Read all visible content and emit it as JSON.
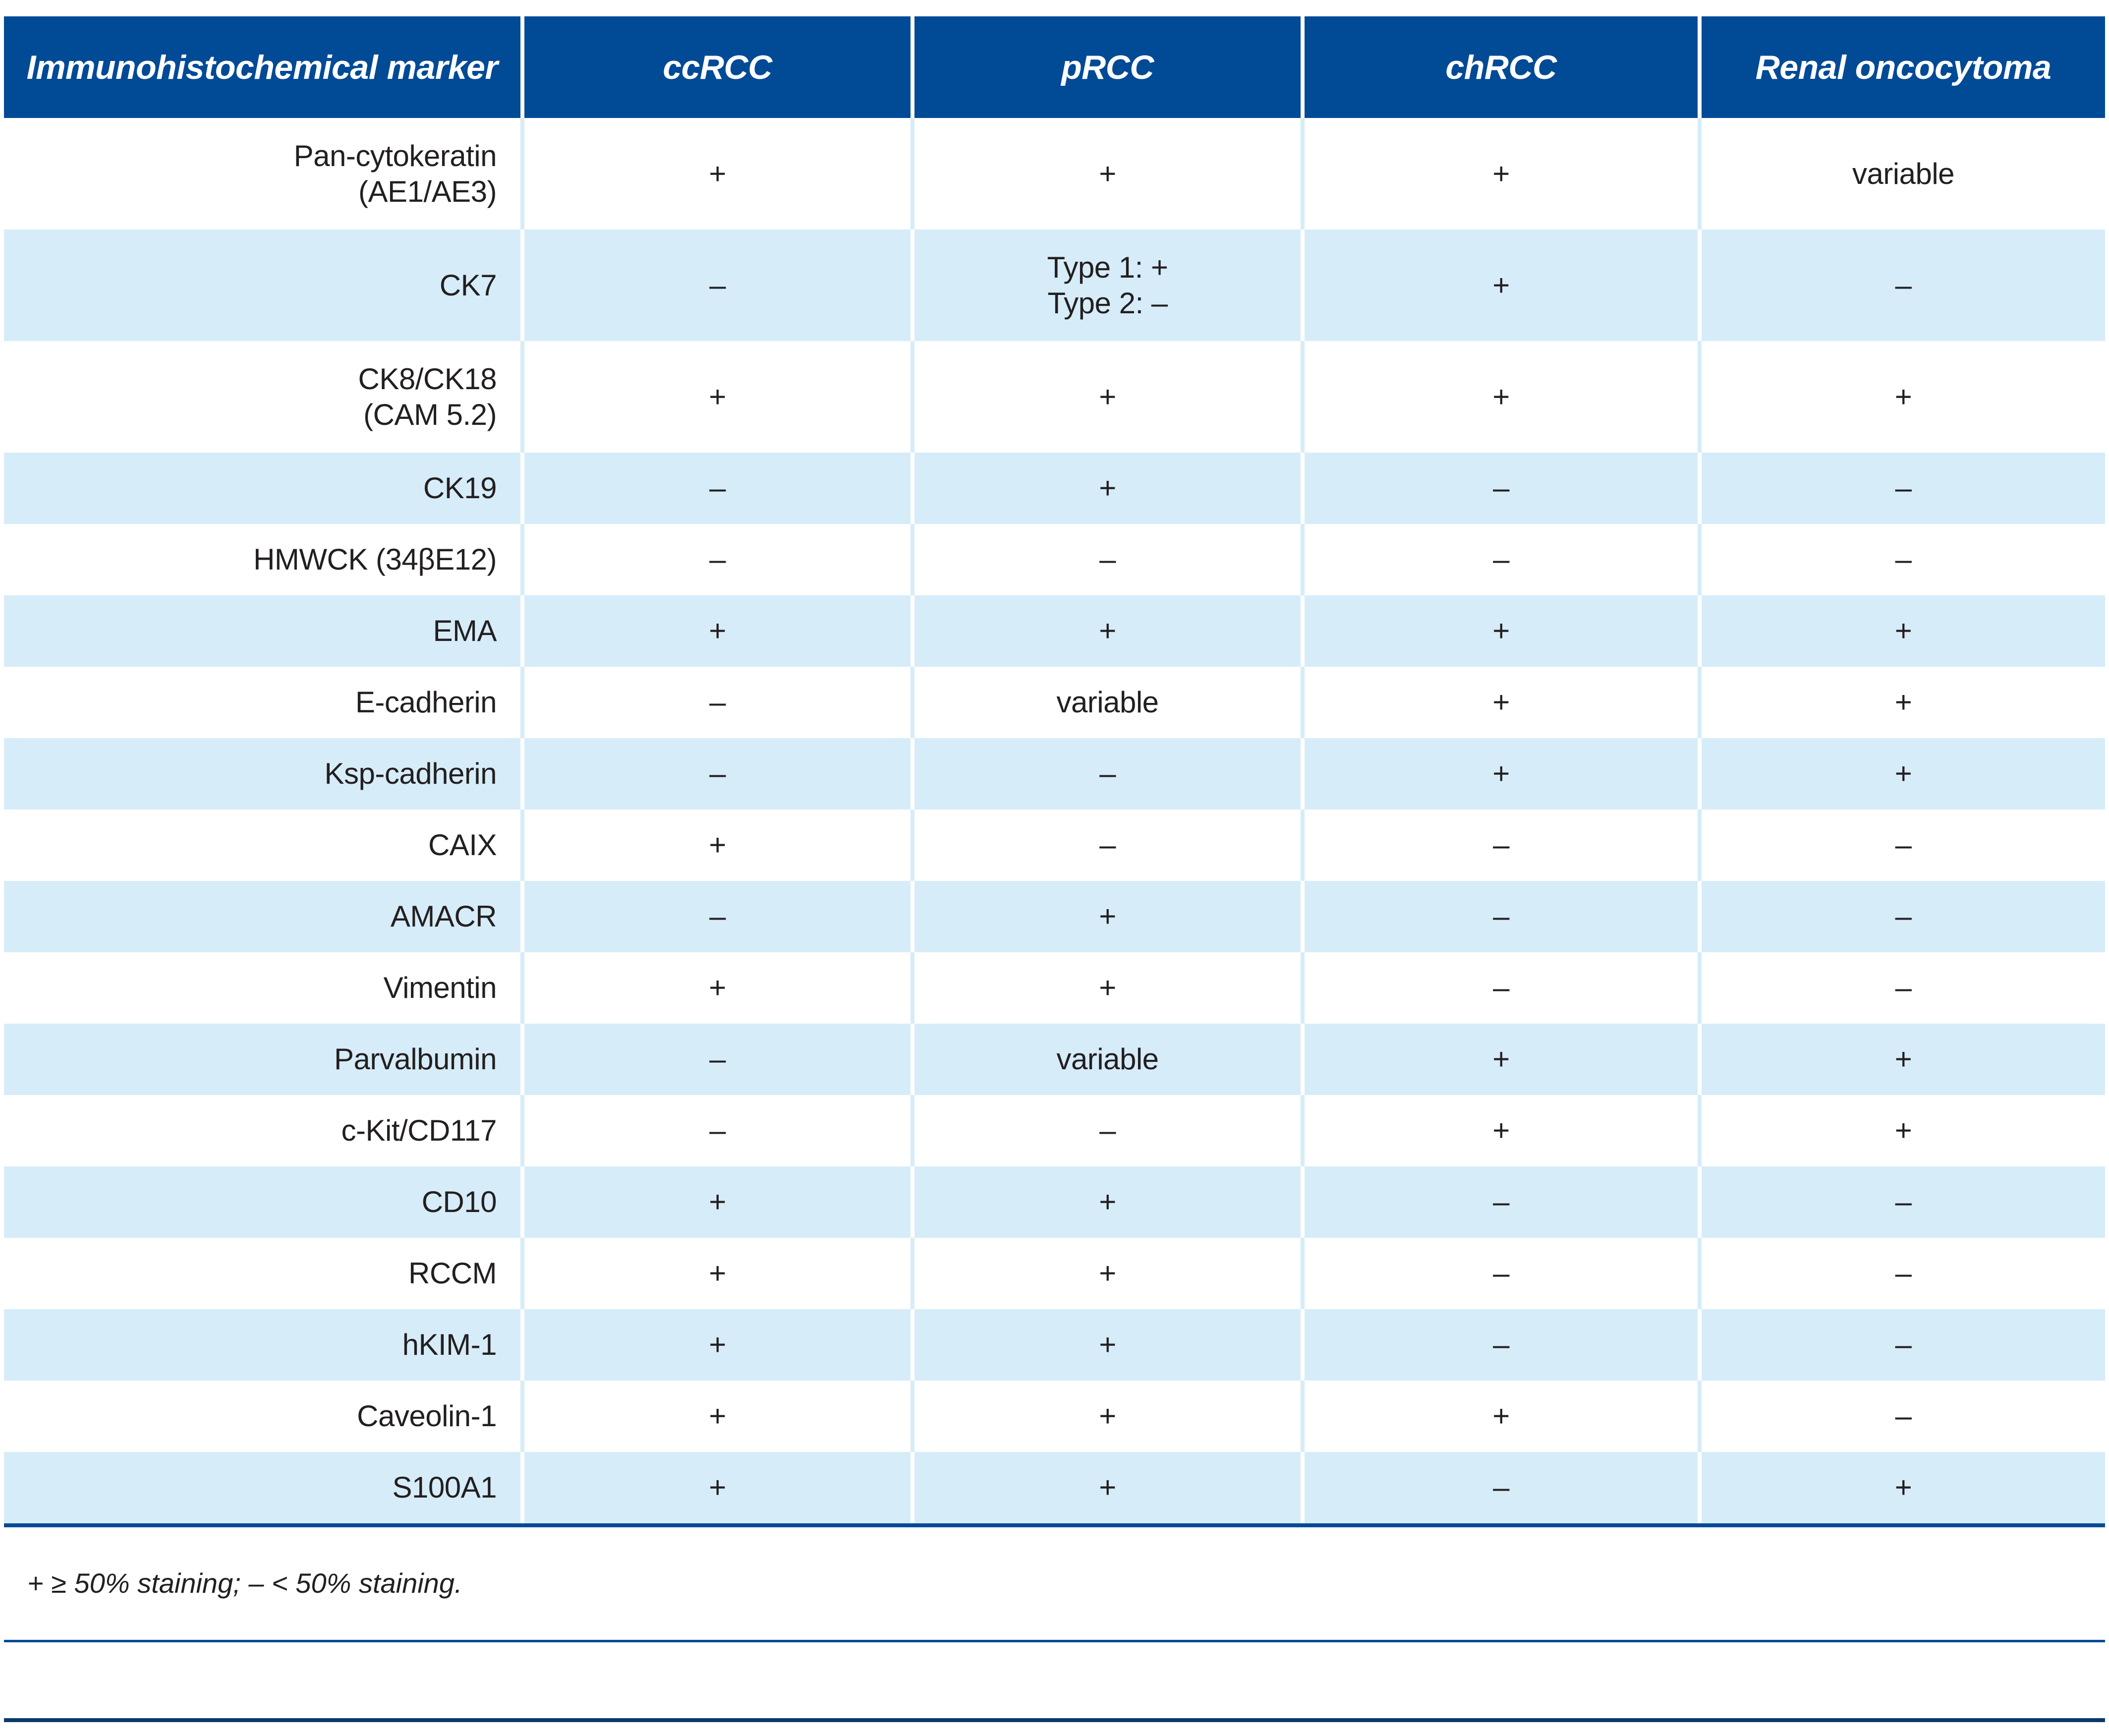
{
  "colors": {
    "header_bg": "#004A96",
    "row_stripe": "#D6ECF9",
    "body_text": "#231F20",
    "header_text": "#FFFFFF",
    "upper_rule": "#004A93",
    "lower_rule": "#0B3A6A"
  },
  "table": {
    "columns": [
      "Immunohistochemical marker",
      "ccRCC",
      "pRCC",
      "chRCC",
      "Renal oncocytoma"
    ],
    "rows": [
      {
        "marker": "Pan-cytokeratin\n(AE1/AE3)",
        "values": [
          "+",
          "+",
          "+",
          "variable"
        ]
      },
      {
        "marker": "CK7",
        "values": [
          "–",
          "Type 1: +\nType 2: –",
          "+",
          "–"
        ]
      },
      {
        "marker": "CK8/CK18\n(CAM 5.2)",
        "values": [
          "+",
          "+",
          "+",
          "+"
        ]
      },
      {
        "marker": "CK19",
        "values": [
          "–",
          "+",
          "–",
          "–"
        ]
      },
      {
        "marker": "HMWCK (34βE12)",
        "values": [
          "–",
          "–",
          "–",
          "–"
        ]
      },
      {
        "marker": "EMA",
        "values": [
          "+",
          "+",
          "+",
          "+"
        ]
      },
      {
        "marker": "E-cadherin",
        "values": [
          "–",
          "variable",
          "+",
          "+"
        ]
      },
      {
        "marker": "Ksp-cadherin",
        "values": [
          "–",
          "–",
          "+",
          "+"
        ]
      },
      {
        "marker": "CAIX",
        "values": [
          "+",
          "–",
          "–",
          "–"
        ]
      },
      {
        "marker": "AMACR",
        "values": [
          "–",
          "+",
          "–",
          "–"
        ]
      },
      {
        "marker": "Vimentin",
        "values": [
          "+",
          "+",
          "–",
          "–"
        ]
      },
      {
        "marker": "Parvalbumin",
        "values": [
          "–",
          "variable",
          "+",
          "+"
        ]
      },
      {
        "marker": "c-Kit/CD117",
        "values": [
          "–",
          "–",
          "+",
          "+"
        ]
      },
      {
        "marker": "CD10",
        "values": [
          "+",
          "+",
          "–",
          "–"
        ]
      },
      {
        "marker": "RCCM",
        "values": [
          "+",
          "+",
          "–",
          "–"
        ]
      },
      {
        "marker": "hKIM-1",
        "values": [
          "+",
          "+",
          "–",
          "–"
        ]
      },
      {
        "marker": "Caveolin-1",
        "values": [
          "+",
          "+",
          "+",
          "–"
        ]
      },
      {
        "marker": "S100A1",
        "values": [
          "+",
          "+",
          "–",
          "+"
        ]
      }
    ],
    "footnote": "+ ≥ 50% staining; – < 50% staining."
  }
}
